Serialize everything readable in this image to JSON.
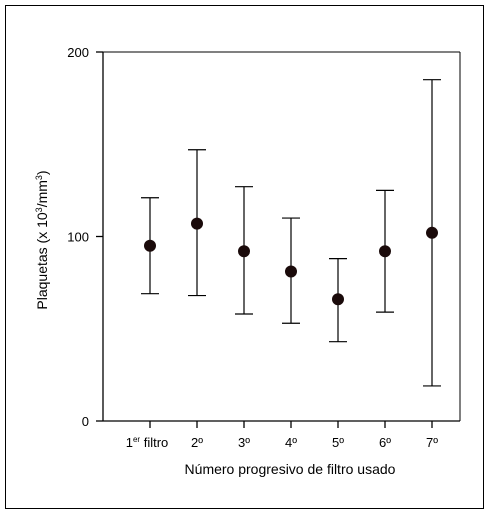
{
  "chart_data": {
    "type": "scatter",
    "title": "",
    "xlabel": "Número progresivo de filtro usado",
    "ylabel": "Plaquetas (x 10³/mm³)",
    "ylabel_parts": {
      "pre": "Plaquetas (x 10",
      "sup1": "3",
      "mid": "/mm",
      "sup2": "3",
      "post": ")"
    },
    "ylim": [
      0,
      200
    ],
    "yticks": [
      0,
      100,
      200
    ],
    "categories": [
      "1er filtro",
      "2º",
      "3º",
      "4º",
      "5º",
      "6º",
      "7º"
    ],
    "first_category_parts": {
      "num": "1",
      "sup": "er",
      "text": " filtro"
    },
    "series": [
      {
        "values": [
          95,
          107,
          92,
          81,
          66,
          92,
          102
        ],
        "lower": [
          69,
          68,
          58,
          53,
          43,
          59,
          19
        ],
        "upper": [
          121,
          147,
          127,
          110,
          88,
          125,
          185
        ]
      }
    ],
    "grid": false,
    "legend": "none",
    "colors": {
      "marker": "#1a0a0a",
      "line": "#000000"
    }
  }
}
